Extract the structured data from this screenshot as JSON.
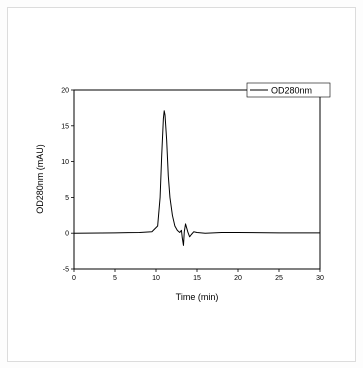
{
  "chart_data": {
    "type": "line",
    "title": "",
    "xlabel": "Time (min)",
    "ylabel": "OD280nm (mAU)",
    "xlim": [
      0,
      30
    ],
    "ylim": [
      -5,
      20
    ],
    "x_ticks": [
      0,
      5,
      10,
      15,
      20,
      25,
      30
    ],
    "y_ticks": [
      -5,
      0,
      5,
      10,
      15,
      20
    ],
    "grid": false,
    "legend_position": "top-right",
    "series": [
      {
        "name": "OD280nm",
        "color": "#000000",
        "x": [
          0,
          5,
          8,
          9.5,
          10.2,
          10.5,
          10.7,
          10.9,
          11.0,
          11.1,
          11.3,
          11.5,
          11.7,
          12.0,
          12.3,
          12.6,
          12.9,
          13.1,
          13.2,
          13.35,
          13.45,
          13.6,
          13.75,
          13.9,
          14.1,
          14.3,
          14.6,
          15.0,
          16.0,
          18.0,
          20.0,
          25.0,
          30.0
        ],
        "values": [
          0,
          0.05,
          0.1,
          0.2,
          1.0,
          5.0,
          11.0,
          16.0,
          17.1,
          16.5,
          13.0,
          8.0,
          5.0,
          2.5,
          1.0,
          0.4,
          0.1,
          0.4,
          -0.6,
          -1.7,
          0.2,
          1.3,
          0.7,
          0.1,
          -0.5,
          -0.2,
          0.2,
          0.1,
          0.0,
          0.1,
          0.1,
          0.05,
          0.05
        ]
      }
    ]
  }
}
